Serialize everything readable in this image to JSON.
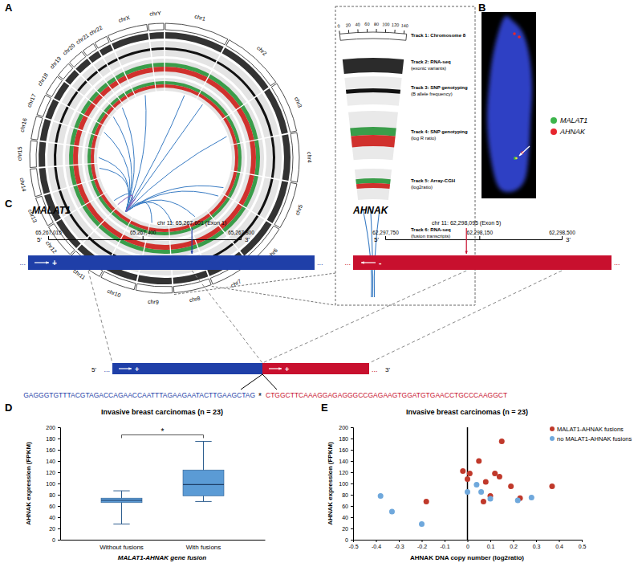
{
  "panel_labels": [
    "A",
    "B",
    "C",
    "D",
    "E"
  ],
  "panel_a": {
    "chromosomes": [
      {
        "name": "chr1",
        "length": 249
      },
      {
        "name": "chr2",
        "length": 243
      },
      {
        "name": "chr3",
        "length": 198
      },
      {
        "name": "chr4",
        "length": 191
      },
      {
        "name": "chr5",
        "length": 181
      },
      {
        "name": "chr6",
        "length": 171
      },
      {
        "name": "chr7",
        "length": 159
      },
      {
        "name": "chr8",
        "length": 146
      },
      {
        "name": "chr9",
        "length": 141
      },
      {
        "name": "chr10",
        "length": 136
      },
      {
        "name": "chr11",
        "length": 135
      },
      {
        "name": "chr12",
        "length": 134
      },
      {
        "name": "chr13",
        "length": 115
      },
      {
        "name": "chr14",
        "length": 107
      },
      {
        "name": "chr15",
        "length": 103
      },
      {
        "name": "chr16",
        "length": 90
      },
      {
        "name": "chr17",
        "length": 81
      },
      {
        "name": "chr18",
        "length": 78
      },
      {
        "name": "chr19",
        "length": 59
      },
      {
        "name": "chr20",
        "length": 63
      },
      {
        "name": "chr21",
        "length": 48
      },
      {
        "name": "chr22",
        "length": 51
      },
      {
        "name": "chrX",
        "length": 155
      },
      {
        "name": "chrY",
        "length": 59
      }
    ],
    "links": [
      {
        "a": [
          "chr11",
          65
        ],
        "b": [
          "chr1",
          155
        ],
        "color": "#3b7dc4"
      },
      {
        "a": [
          "chr11",
          65
        ],
        "b": [
          "chr2",
          60
        ],
        "color": "#3b7dc4"
      },
      {
        "a": [
          "chr11",
          65
        ],
        "b": [
          "chr3",
          130
        ],
        "color": "#3b7dc4"
      },
      {
        "a": [
          "chr11",
          62
        ],
        "b": [
          "chr5",
          140
        ],
        "color": "#3b7dc4"
      },
      {
        "a": [
          "chr11",
          62
        ],
        "b": [
          "chr6",
          30
        ],
        "color": "#3b7dc4"
      },
      {
        "a": [
          "chr11",
          65
        ],
        "b": [
          "chr7",
          100
        ],
        "color": "#3b7dc4"
      },
      {
        "a": [
          "chr11",
          62
        ],
        "b": [
          "chr8",
          120
        ],
        "color": "#3b7dc4"
      },
      {
        "a": [
          "chr11",
          65
        ],
        "b": [
          "chr9",
          130
        ],
        "color": "#3b7dc4"
      },
      {
        "a": [
          "chr11",
          62
        ],
        "b": [
          "chr12",
          50
        ],
        "color": "#3b7dc4"
      },
      {
        "a": [
          "chr11",
          65
        ],
        "b": [
          "chr14",
          70
        ],
        "color": "#3b7dc4"
      },
      {
        "a": [
          "chr11",
          65
        ],
        "b": [
          "chr15",
          40
        ],
        "color": "#3b7dc4"
      },
      {
        "a": [
          "chr11",
          62
        ],
        "b": [
          "chr17",
          40
        ],
        "color": "#3b7dc4"
      },
      {
        "a": [
          "chr11",
          65
        ],
        "b": [
          "chr19",
          10
        ],
        "color": "#3b7dc4"
      },
      {
        "a": [
          "chr11",
          65
        ],
        "b": [
          "chr20",
          45
        ],
        "color": "#3b7dc4"
      },
      {
        "a": [
          "chr11",
          62
        ],
        "b": [
          "chrX",
          70
        ],
        "color": "#3b7dc4"
      },
      {
        "a": [
          "chr11",
          65
        ],
        "b": [
          "chr11",
          62
        ],
        "color": "#8a5fb8"
      },
      {
        "a": [
          "chr11",
          65
        ],
        "b": [
          "chr12",
          7
        ],
        "color": "#8a5fb8"
      }
    ],
    "inset": {
      "chromosome": "chr8",
      "chromosome_length": 146,
      "ticks": [
        0,
        20,
        40,
        60,
        80,
        100,
        120,
        140
      ],
      "tracks": [
        {
          "title": "Track 1: Chromosome 8"
        },
        {
          "title": "Track 2: RNA-seq",
          "subtitle": "(exonic variants)"
        },
        {
          "title": "Track 3: SNP genotyping",
          "subtitle": "(B allele frequency)"
        },
        {
          "title": "Track 4: SNP genotyping",
          "subtitle": "(log R ratio)"
        },
        {
          "title": "Track 5: Array-CGH",
          "subtitle": "(log2ratio)"
        },
        {
          "title": "Track 6: RNA-seq",
          "subtitle": "(fusion transcripts)"
        }
      ]
    }
  },
  "panel_b": {
    "legend": [
      {
        "label": "MALAT1",
        "color": "#3cb44b"
      },
      {
        "label": "AHNAK",
        "color": "#e6262e"
      }
    ]
  },
  "panel_c": {
    "genes": [
      {
        "name": "MALAT1",
        "strand": "+",
        "color": "#1f3fa8",
        "lim": [
          65267015,
          65267800
        ],
        "ticks": [
          {
            "value": 65267015,
            "label": "65,267,015"
          },
          {
            "value": 65267400,
            "label": "65,267,400"
          },
          {
            "value": 65267800,
            "label": "65,267,800"
          }
        ],
        "breakpoint": 65267601,
        "breakpoint_label": "chr 11: 65,267,601 (Exon 1)"
      },
      {
        "name": "AHNAK",
        "strand": "-",
        "color": "#c8102e",
        "lim": [
          62297750,
          62298500
        ],
        "ticks": [
          {
            "value": 62297750,
            "label": "62,297,750"
          },
          {
            "value": 62298150,
            "label": "62,298,150"
          },
          {
            "value": 62298500,
            "label": "62,298,500"
          }
        ],
        "breakpoint": 62298095,
        "breakpoint_label": "chr 11: 62,298,095 (Exon 5)"
      }
    ],
    "five_prime": "5'",
    "three_prime": "3'",
    "continuation": "...",
    "fusion_strand": "+",
    "sequence": {
      "left": "GAGGGTGTTTACGTAGACCAGAACCAATTTAGAAGAATACTTGAAGCTAG",
      "junction": "*",
      "right": "CTGGCTTCAAAGGAGAGGGCCGAGAAGTGGATGTGAACCTGCCCAAGGCT"
    }
  },
  "chart_data": [
    {
      "type": "box",
      "title": "Invasive breast carcinomas (n = 23)",
      "x_label": "MALAT1-AHNAK gene fusion",
      "y_label": "AHNAK expression (FPKM)",
      "categories": [
        "Without fusions",
        "With fusions"
      ],
      "min": [
        28,
        68
      ],
      "q1": [
        66,
        78
      ],
      "median": [
        70,
        98
      ],
      "q3": [
        74,
        124
      ],
      "max": [
        87,
        175
      ],
      "color": "#5b9bd5",
      "annotation": "*",
      "ylim": [
        0,
        200
      ],
      "yticks": [
        0,
        20,
        40,
        60,
        80,
        100,
        120,
        140,
        160,
        180,
        200
      ]
    },
    {
      "type": "scatter",
      "title": "Invasive breast carcinomas (n = 23)",
      "x_label": "AHNAK DNA copy number (log2ratio)",
      "y_label": "AHNAK expression (FPKM)",
      "series": [
        {
          "name": "MALAT1-AHNAK fusions",
          "color": "#c0392b",
          "x": [
            -0.18,
            -0.02,
            0.01,
            0.0,
            0.05,
            0.08,
            0.12,
            0.14,
            0.15,
            0.1,
            0.07,
            0.19,
            0.23,
            0.37
          ],
          "values": [
            68,
            122,
            118,
            108,
            140,
            103,
            118,
            112,
            175,
            78,
            68,
            95,
            74,
            95
          ]
        },
        {
          "name": "no MALAT1-AHNAK fusions",
          "color": "#6fa8dc",
          "x": [
            -0.38,
            -0.33,
            -0.2,
            0.0,
            0.04,
            0.06,
            0.1,
            0.22,
            0.28
          ],
          "values": [
            78,
            50,
            28,
            85,
            98,
            85,
            73,
            70,
            75
          ]
        }
      ],
      "legend": "upper right",
      "xlim": [
        -0.5,
        0.5
      ],
      "xticks": [
        -0.5,
        -0.4,
        -0.3,
        -0.2,
        -0.1,
        0,
        0.1,
        0.2,
        0.3,
        0.4,
        0.5
      ],
      "ylim": [
        0,
        200
      ],
      "yticks": [
        0,
        20,
        40,
        60,
        80,
        100,
        120,
        140,
        160,
        180,
        200
      ]
    }
  ]
}
